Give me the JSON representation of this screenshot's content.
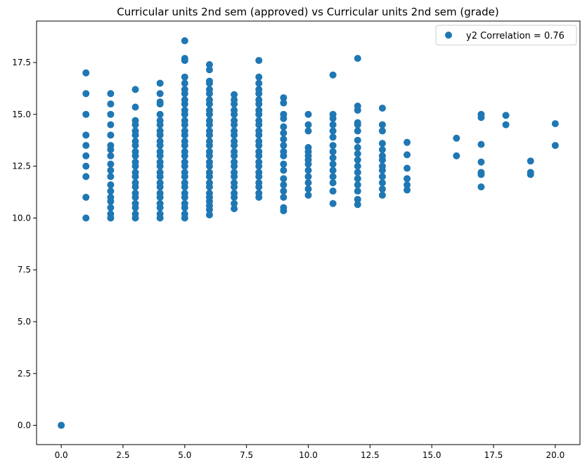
{
  "chart_data": {
    "type": "scatter",
    "title": "Curricular units 2nd sem (approved) vs Curricular units 2nd sem (grade)",
    "xlabel": "",
    "ylabel": "",
    "xlim": [
      -1.0,
      21.0
    ],
    "ylim": [
      -0.93,
      19.5
    ],
    "xticks": [
      0.0,
      2.5,
      5.0,
      7.5,
      10.0,
      12.5,
      15.0,
      17.5,
      20.0
    ],
    "xtick_labels": [
      "0.0",
      "2.5",
      "5.0",
      "7.5",
      "10.0",
      "12.5",
      "15.0",
      "17.5",
      "20.0"
    ],
    "yticks": [
      0.0,
      2.5,
      5.0,
      7.5,
      10.0,
      12.5,
      15.0,
      17.5
    ],
    "ytick_labels": [
      "0.0",
      "2.5",
      "5.0",
      "7.5",
      "10.0",
      "12.5",
      "15.0",
      "17.5"
    ],
    "grid": false,
    "legend_position": "top-right",
    "colors": {
      "series": "#1f77b4"
    },
    "series": [
      {
        "name": "y2 Correlation = 0.76",
        "points": [
          [
            0,
            0
          ],
          [
            1,
            10
          ],
          [
            1,
            11
          ],
          [
            1,
            12
          ],
          [
            1,
            12.5
          ],
          [
            1,
            13
          ],
          [
            1,
            13.5
          ],
          [
            1,
            14
          ],
          [
            1,
            15
          ],
          [
            1,
            16
          ],
          [
            1,
            17
          ],
          [
            2,
            10
          ],
          [
            2,
            10.2
          ],
          [
            2,
            10.5
          ],
          [
            2,
            10.8
          ],
          [
            2,
            11
          ],
          [
            2,
            11.3
          ],
          [
            2,
            11.6
          ],
          [
            2,
            12
          ],
          [
            2,
            12.3
          ],
          [
            2,
            12.6
          ],
          [
            2,
            13
          ],
          [
            2,
            13.3
          ],
          [
            2,
            13.5
          ],
          [
            2,
            14
          ],
          [
            2,
            14.5
          ],
          [
            2,
            15
          ],
          [
            2,
            15.5
          ],
          [
            2,
            16
          ],
          [
            3,
            10
          ],
          [
            3,
            10.2
          ],
          [
            3,
            10.5
          ],
          [
            3,
            10.7
          ],
          [
            3,
            11
          ],
          [
            3,
            11.2
          ],
          [
            3,
            11.5
          ],
          [
            3,
            11.7
          ],
          [
            3,
            12
          ],
          [
            3,
            12.2
          ],
          [
            3,
            12.5
          ],
          [
            3,
            12.7
          ],
          [
            3,
            13
          ],
          [
            3,
            13.2
          ],
          [
            3,
            13.5
          ],
          [
            3,
            13.7
          ],
          [
            3,
            14
          ],
          [
            3,
            14.2
          ],
          [
            3,
            14.5
          ],
          [
            3,
            14.7
          ],
          [
            3,
            15.35
          ],
          [
            3,
            16.2
          ],
          [
            4,
            10
          ],
          [
            4,
            10.2
          ],
          [
            4,
            10.5
          ],
          [
            4,
            10.7
          ],
          [
            4,
            11
          ],
          [
            4,
            11.2
          ],
          [
            4,
            11.5
          ],
          [
            4,
            11.7
          ],
          [
            4,
            12
          ],
          [
            4,
            12.2
          ],
          [
            4,
            12.5
          ],
          [
            4,
            12.7
          ],
          [
            4,
            13
          ],
          [
            4,
            13.2
          ],
          [
            4,
            13.5
          ],
          [
            4,
            13.7
          ],
          [
            4,
            14
          ],
          [
            4,
            14.2
          ],
          [
            4,
            14.5
          ],
          [
            4,
            14.7
          ],
          [
            4,
            15
          ],
          [
            4,
            15.5
          ],
          [
            4,
            15.6
          ],
          [
            4,
            16
          ],
          [
            4,
            16.5
          ],
          [
            5,
            10
          ],
          [
            5,
            10.2
          ],
          [
            5,
            10.5
          ],
          [
            5,
            10.7
          ],
          [
            5,
            11
          ],
          [
            5,
            11.2
          ],
          [
            5,
            11.5
          ],
          [
            5,
            11.7
          ],
          [
            5,
            12
          ],
          [
            5,
            12.2
          ],
          [
            5,
            12.5
          ],
          [
            5,
            12.7
          ],
          [
            5,
            13
          ],
          [
            5,
            13.2
          ],
          [
            5,
            13.5
          ],
          [
            5,
            13.7
          ],
          [
            5,
            14
          ],
          [
            5,
            14.2
          ],
          [
            5,
            14.5
          ],
          [
            5,
            14.7
          ],
          [
            5,
            15
          ],
          [
            5,
            15.2
          ],
          [
            5,
            15.5
          ],
          [
            5,
            15.7
          ],
          [
            5,
            16
          ],
          [
            5,
            16.2
          ],
          [
            5,
            16.5
          ],
          [
            5,
            16.8
          ],
          [
            5,
            17.6
          ],
          [
            5,
            17.7
          ],
          [
            5,
            18.55
          ],
          [
            6,
            10.15
          ],
          [
            6,
            10.4
          ],
          [
            6,
            10.6
          ],
          [
            6,
            10.8
          ],
          [
            6,
            11
          ],
          [
            6,
            11.2
          ],
          [
            6,
            11.5
          ],
          [
            6,
            11.7
          ],
          [
            6,
            12
          ],
          [
            6,
            12.2
          ],
          [
            6,
            12.5
          ],
          [
            6,
            12.7
          ],
          [
            6,
            13
          ],
          [
            6,
            13.2
          ],
          [
            6,
            13.5
          ],
          [
            6,
            13.7
          ],
          [
            6,
            14
          ],
          [
            6,
            14.2
          ],
          [
            6,
            14.5
          ],
          [
            6,
            14.7
          ],
          [
            6,
            15
          ],
          [
            6,
            15.2
          ],
          [
            6,
            15.5
          ],
          [
            6,
            15.7
          ],
          [
            6,
            16
          ],
          [
            6,
            16.2
          ],
          [
            6,
            16.5
          ],
          [
            6,
            16.6
          ],
          [
            6,
            17.15
          ],
          [
            6,
            17.4
          ],
          [
            7,
            10.45
          ],
          [
            7,
            10.7
          ],
          [
            7,
            11
          ],
          [
            7,
            11.2
          ],
          [
            7,
            11.5
          ],
          [
            7,
            11.7
          ],
          [
            7,
            12
          ],
          [
            7,
            12.2
          ],
          [
            7,
            12.5
          ],
          [
            7,
            12.7
          ],
          [
            7,
            13
          ],
          [
            7,
            13.2
          ],
          [
            7,
            13.5
          ],
          [
            7,
            13.7
          ],
          [
            7,
            14
          ],
          [
            7,
            14.2
          ],
          [
            7,
            14.5
          ],
          [
            7,
            14.7
          ],
          [
            7,
            15
          ],
          [
            7,
            15.2
          ],
          [
            7,
            15.5
          ],
          [
            7,
            15.7
          ],
          [
            7,
            15.95
          ],
          [
            8,
            11
          ],
          [
            8,
            11.2
          ],
          [
            8,
            11.5
          ],
          [
            8,
            11.7
          ],
          [
            8,
            12
          ],
          [
            8,
            12.2
          ],
          [
            8,
            12.5
          ],
          [
            8,
            12.7
          ],
          [
            8,
            13
          ],
          [
            8,
            13.2
          ],
          [
            8,
            13.5
          ],
          [
            8,
            13.7
          ],
          [
            8,
            14
          ],
          [
            8,
            14.2
          ],
          [
            8,
            14.5
          ],
          [
            8,
            14.7
          ],
          [
            8,
            15
          ],
          [
            8,
            15.2
          ],
          [
            8,
            15.5
          ],
          [
            8,
            15.7
          ],
          [
            8,
            16
          ],
          [
            8,
            16.2
          ],
          [
            8,
            16.5
          ],
          [
            8,
            16.8
          ],
          [
            8,
            17.6
          ],
          [
            9,
            10.35
          ],
          [
            9,
            10.5
          ],
          [
            9,
            11
          ],
          [
            9,
            11.3
          ],
          [
            9,
            11.6
          ],
          [
            9,
            11.9
          ],
          [
            9,
            12.3
          ],
          [
            9,
            12.6
          ],
          [
            9,
            13
          ],
          [
            9,
            13.2
          ],
          [
            9,
            13.5
          ],
          [
            9,
            13.8
          ],
          [
            9,
            14.1
          ],
          [
            9,
            14.4
          ],
          [
            9,
            14.8
          ],
          [
            9,
            15
          ],
          [
            9,
            15.55
          ],
          [
            9,
            15.8
          ],
          [
            10,
            11.1
          ],
          [
            10,
            11.4
          ],
          [
            10,
            11.7
          ],
          [
            10,
            12
          ],
          [
            10,
            12.3
          ],
          [
            10,
            12.6
          ],
          [
            10,
            12.8
          ],
          [
            10,
            13
          ],
          [
            10,
            13.2
          ],
          [
            10,
            13.4
          ],
          [
            10,
            14.2
          ],
          [
            10,
            14.5
          ],
          [
            10,
            15
          ],
          [
            11,
            10.7
          ],
          [
            11,
            11.3
          ],
          [
            11,
            11.7
          ],
          [
            11,
            12
          ],
          [
            11,
            12.3
          ],
          [
            11,
            12.6
          ],
          [
            11,
            12.9
          ],
          [
            11,
            13.2
          ],
          [
            11,
            13.5
          ],
          [
            11,
            13.9
          ],
          [
            11,
            14.2
          ],
          [
            11,
            14.5
          ],
          [
            11,
            14.8
          ],
          [
            11,
            15
          ],
          [
            11,
            16.9
          ],
          [
            12,
            10.65
          ],
          [
            12,
            10.9
          ],
          [
            12,
            11.3
          ],
          [
            12,
            11.6
          ],
          [
            12,
            11.9
          ],
          [
            12,
            12.2
          ],
          [
            12,
            12.5
          ],
          [
            12,
            12.8
          ],
          [
            12,
            13.1
          ],
          [
            12,
            13.4
          ],
          [
            12,
            13.75
          ],
          [
            12,
            14.2
          ],
          [
            12,
            14.5
          ],
          [
            12,
            14.6
          ],
          [
            12,
            15.2
          ],
          [
            12,
            15.4
          ],
          [
            12,
            17.7
          ],
          [
            13,
            11.1
          ],
          [
            13,
            11.4
          ],
          [
            13,
            11.7
          ],
          [
            13,
            12
          ],
          [
            13,
            12.3
          ],
          [
            13,
            12.5
          ],
          [
            13,
            12.8
          ],
          [
            13,
            13
          ],
          [
            13,
            13.3
          ],
          [
            13,
            13.6
          ],
          [
            13,
            14.2
          ],
          [
            13,
            14.5
          ],
          [
            13,
            15.3
          ],
          [
            14,
            11.35
          ],
          [
            14,
            11.6
          ],
          [
            14,
            11.9
          ],
          [
            14,
            12.4
          ],
          [
            14,
            13.05
          ],
          [
            14,
            13.65
          ],
          [
            16,
            13
          ],
          [
            16,
            13.85
          ],
          [
            17,
            11.5
          ],
          [
            17,
            12.1
          ],
          [
            17,
            12.2
          ],
          [
            17,
            12.7
          ],
          [
            17,
            13.55
          ],
          [
            17,
            14.85
          ],
          [
            17,
            15
          ],
          [
            18,
            14.5
          ],
          [
            18,
            14.95
          ],
          [
            19,
            12.1
          ],
          [
            19,
            12.2
          ],
          [
            19,
            12.75
          ],
          [
            20,
            13.5
          ],
          [
            20,
            14.55
          ]
        ]
      }
    ]
  }
}
